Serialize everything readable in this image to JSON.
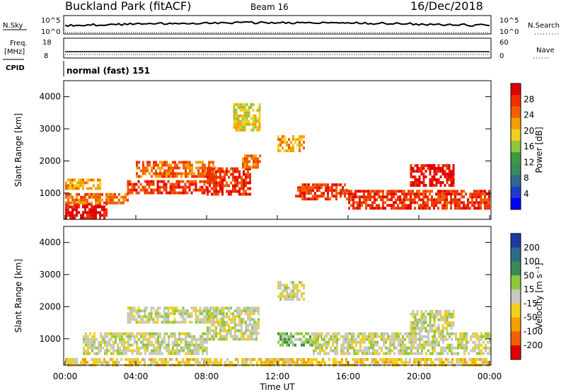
{
  "header": {
    "site": "Buckland Park (fitACF)",
    "beam": "Beam 16",
    "date": "16/Dec/2018"
  },
  "top_panels": {
    "nsky_label": "N.Sky",
    "nsky_ticks": [
      "10^5",
      "10^0"
    ],
    "nsearch_label": "N.Search",
    "nsearch_ticks": [
      "10^5",
      "10^0"
    ],
    "freq_label_1": "Freq.",
    "freq_label_2": "[MHz]",
    "freq_ticks": [
      "18",
      "8"
    ],
    "nave_label": "Nave",
    "nave_ticks": [
      "60",
      "0"
    ],
    "cpid_label": "CPID",
    "cpid_value": "normal (fast) 151"
  },
  "x_axis": {
    "label": "Time UT",
    "ticks": [
      "00:00",
      "04:00",
      "08:00",
      "12:00",
      "16:00",
      "20:00",
      "00:00"
    ]
  },
  "chart_data": [
    {
      "type": "heatmap",
      "panel": "power",
      "ylabel": "Slant Range [km]",
      "yticks": [
        "1000",
        "2000",
        "3000",
        "4000"
      ],
      "ylim": [
        180,
        4500
      ],
      "xlim_hours": [
        0,
        24
      ],
      "colorbar_label": "Power [dB]",
      "colorbar_ticks": [
        "4",
        "8",
        "12",
        "16",
        "20",
        "24",
        "28"
      ],
      "colors": [
        "#0000ff",
        "#1e3cc8",
        "#2f6a8c",
        "#3c8a5a",
        "#3c9a3c",
        "#8fc83c",
        "#f0d020",
        "#f5a000",
        "#f06000",
        "#f03000",
        "#e00000"
      ],
      "bands": [
        {
          "t0": 0.0,
          "t1": 2.4,
          "r0": 200,
          "r1": 700,
          "level": 10
        },
        {
          "t0": 0.0,
          "t1": 3.5,
          "r0": 700,
          "r1": 1000,
          "level": 8
        },
        {
          "t0": 0.0,
          "t1": 2.0,
          "r0": 1150,
          "r1": 1450,
          "level": 7
        },
        {
          "t0": 3.5,
          "t1": 8.0,
          "r0": 1000,
          "r1": 1400,
          "level": 9
        },
        {
          "t0": 4.0,
          "t1": 8.5,
          "r0": 1500,
          "r1": 2000,
          "level": 8
        },
        {
          "t0": 8.0,
          "t1": 10.5,
          "r0": 1000,
          "r1": 1800,
          "level": 9
        },
        {
          "t0": 10.0,
          "t1": 11.0,
          "r0": 1800,
          "r1": 2200,
          "level": 8
        },
        {
          "t0": 13.0,
          "t1": 16.0,
          "r0": 800,
          "r1": 1300,
          "level": 9
        },
        {
          "t0": 16.0,
          "t1": 24.0,
          "r0": 500,
          "r1": 1100,
          "level": 9
        },
        {
          "t0": 19.5,
          "t1": 22.0,
          "r0": 1200,
          "r1": 1900,
          "level": 10
        },
        {
          "t0": 12.0,
          "t1": 13.5,
          "r0": 2300,
          "r1": 2800,
          "level": 7
        },
        {
          "t0": 9.5,
          "t1": 11.0,
          "r0": 3000,
          "r1": 3800,
          "level": 6
        }
      ]
    },
    {
      "type": "heatmap",
      "panel": "velocity",
      "ylabel": "Slant Range [km]",
      "yticks": [
        "1000",
        "2000",
        "3000",
        "4000"
      ],
      "ylim": [
        180,
        4500
      ],
      "xlim_hours": [
        0,
        24
      ],
      "colorbar_label": "Velocity [m s⁻¹]",
      "colorbar_ticks": [
        "200",
        "100",
        "50",
        "15",
        "-15",
        "-50",
        "-100",
        "-200"
      ],
      "colors": [
        "#1e3ca0",
        "#2f6a8c",
        "#3c8a5a",
        "#8fc83c",
        "#c8c8c0",
        "#f0d020",
        "#f5a000",
        "#f06000",
        "#e00000"
      ],
      "bands": [
        {
          "t0": 1.0,
          "t1": 8.0,
          "r0": 500,
          "r1": 1200,
          "level": 4
        },
        {
          "t0": 3.5,
          "t1": 9.0,
          "r0": 1500,
          "r1": 2000,
          "level": 4
        },
        {
          "t0": 8.0,
          "t1": 11.0,
          "r0": 1000,
          "r1": 2000,
          "level": 4
        },
        {
          "t0": 12.0,
          "t1": 14.5,
          "r0": 800,
          "r1": 1200,
          "level": 3
        },
        {
          "t0": 14.0,
          "t1": 24.0,
          "r0": 500,
          "r1": 1200,
          "level": 4
        },
        {
          "t0": 19.5,
          "t1": 22.0,
          "r0": 1200,
          "r1": 1900,
          "level": 4
        },
        {
          "t0": 12.0,
          "t1": 13.5,
          "r0": 2200,
          "r1": 2800,
          "level": 4
        },
        {
          "t0": 0.0,
          "t1": 24.0,
          "r0": 200,
          "r1": 400,
          "level": 5
        }
      ]
    }
  ]
}
